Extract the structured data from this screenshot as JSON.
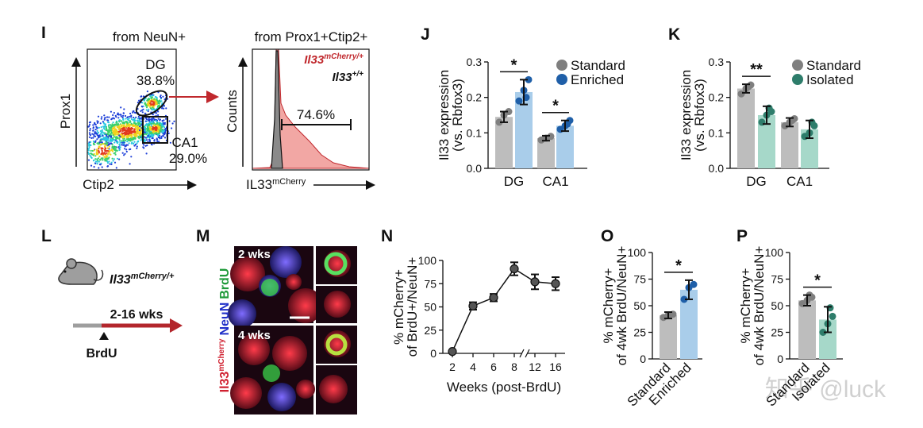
{
  "panel_I": {
    "label": "I",
    "left_title": "from NeuN+",
    "dg": "DG",
    "dg_pct": "38.8%",
    "ca1": "CA1",
    "ca1_pct": "29.0%",
    "y_label": "Prox1",
    "x_label": "Ctip2",
    "right_title": "from Prox1+Ctip2+",
    "legend": [
      {
        "base": "Il33",
        "sup": "mCherry/+"
      },
      {
        "base": "Il33",
        "sup": "+/+"
      }
    ],
    "gate_pct": "74.6%",
    "hist_y_label": "Counts",
    "hist_x_label": {
      "base": "IL33",
      "sup": "mCherry"
    }
  },
  "panel_L": {
    "label": "L",
    "genotype": {
      "base": "Il33",
      "sup": "mCherry/+"
    },
    "duration": "2-16 wks",
    "injection": "BrdU"
  },
  "panel_M": {
    "label": "M",
    "timepoints": [
      "2 wks",
      "4 wks"
    ],
    "channels": [
      {
        "base": "Il33",
        "sup": "mCherry"
      },
      "NeuN",
      "BrdU"
    ]
  },
  "watermark": "知乎 @luck",
  "chart_data": [
    {
      "type": "bar",
      "panel": "J",
      "categories": [
        "DG",
        "CA1"
      ],
      "series": [
        {
          "name": "Standard",
          "color": "#7f7f7f",
          "bar_color": "#bdbdbd",
          "values": [
            0.145,
            0.085
          ],
          "errors": [
            0.015,
            0.007
          ],
          "points": [
            [
              0.13,
              0.15,
              0.16
            ],
            [
              0.08,
              0.085,
              0.09
            ]
          ]
        },
        {
          "name": "Enriched",
          "color": "#1f5fa8",
          "bar_color": "#a9cdea",
          "values": [
            0.215,
            0.12
          ],
          "errors": [
            0.035,
            0.015
          ],
          "points": [
            [
              0.19,
              0.22,
              0.25,
              0.2
            ],
            [
              0.11,
              0.12,
              0.135,
              0.125
            ]
          ]
        }
      ],
      "ylim": [
        0,
        0.3
      ],
      "yticks": [
        {
          "value": 0,
          "label": "0.0"
        },
        0.1,
        0.2,
        0.3
      ],
      "ylabel": [
        "Il33 expression",
        "(vs. Rbfox3)"
      ],
      "annotations": [
        "*",
        "*"
      ]
    },
    {
      "type": "bar",
      "panel": "K",
      "categories": [
        "DG",
        "CA1"
      ],
      "series": [
        {
          "name": "Standard",
          "color": "#7f7f7f",
          "bar_color": "#bdbdbd",
          "values": [
            0.225,
            0.13
          ],
          "errors": [
            0.012,
            0.012
          ],
          "points": [
            [
              0.21,
              0.225,
              0.235,
              0.23
            ],
            [
              0.12,
              0.13,
              0.14,
              0.135
            ]
          ]
        },
        {
          "name": "Isolated",
          "color": "#2e7d6b",
          "bar_color": "#a6d8c9",
          "values": [
            0.15,
            0.11
          ],
          "errors": [
            0.025,
            0.025
          ],
          "points": [
            [
              0.13,
              0.15,
              0.16,
              0.17
            ],
            [
              0.09,
              0.1,
              0.12,
              0.13
            ]
          ]
        }
      ],
      "ylim": [
        0,
        0.3
      ],
      "yticks": [
        {
          "value": 0,
          "label": "0.0"
        },
        0.1,
        0.2,
        0.3
      ],
      "ylabel": [
        "Il33 expression",
        "(vs. Rbfox3)"
      ],
      "annotations": [
        "**"
      ]
    },
    {
      "type": "line",
      "panel": "N",
      "categories": [
        "2",
        "4",
        "6",
        "8",
        "12",
        "16"
      ],
      "values": [
        2,
        51,
        60,
        91,
        77,
        75
      ],
      "errors": [
        0,
        4,
        4,
        7,
        8,
        7
      ],
      "color": "#555555",
      "ylim": [
        0,
        100
      ],
      "yticks": [
        0,
        25,
        50,
        75,
        100
      ],
      "ylabel": [
        "% mCherry+",
        "of BrdU+/NeuN+"
      ],
      "xlabel": "Weeks (post-BrdU)"
    },
    {
      "type": "bar",
      "panel": "O",
      "categories": [
        "Standard",
        "Enriched"
      ],
      "values": [
        41,
        65
      ],
      "errors": [
        3,
        9
      ],
      "points": [
        [
          39,
          41,
          42
        ],
        [
          56,
          67,
          70
        ]
      ],
      "colors": [
        "#7f7f7f",
        "#1f5fa8"
      ],
      "bar_colors": [
        "#bdbdbd",
        "#a9cdea"
      ],
      "ylim": [
        0,
        100
      ],
      "yticks": [
        0,
        25,
        50,
        75,
        100
      ],
      "ylabel": [
        "% mCherry+",
        "of 4wk BrdU/NeuN+"
      ],
      "annotations": [
        "*"
      ]
    },
    {
      "type": "bar",
      "panel": "P",
      "categories": [
        "Standard",
        "Isolated"
      ],
      "values": [
        55,
        37
      ],
      "errors": [
        5,
        12
      ],
      "points": [
        [
          52,
          55,
          58,
          60
        ],
        [
          25,
          33,
          40,
          48
        ]
      ],
      "colors": [
        "#7f7f7f",
        "#2e7d6b"
      ],
      "bar_colors": [
        "#bdbdbd",
        "#a6d8c9"
      ],
      "ylim": [
        0,
        100
      ],
      "yticks": [
        0,
        25,
        50,
        75,
        100
      ],
      "ylabel": [
        "% mCherry+",
        "of 4wk BrdU/NeuN+"
      ],
      "annotations": [
        "*"
      ]
    }
  ]
}
